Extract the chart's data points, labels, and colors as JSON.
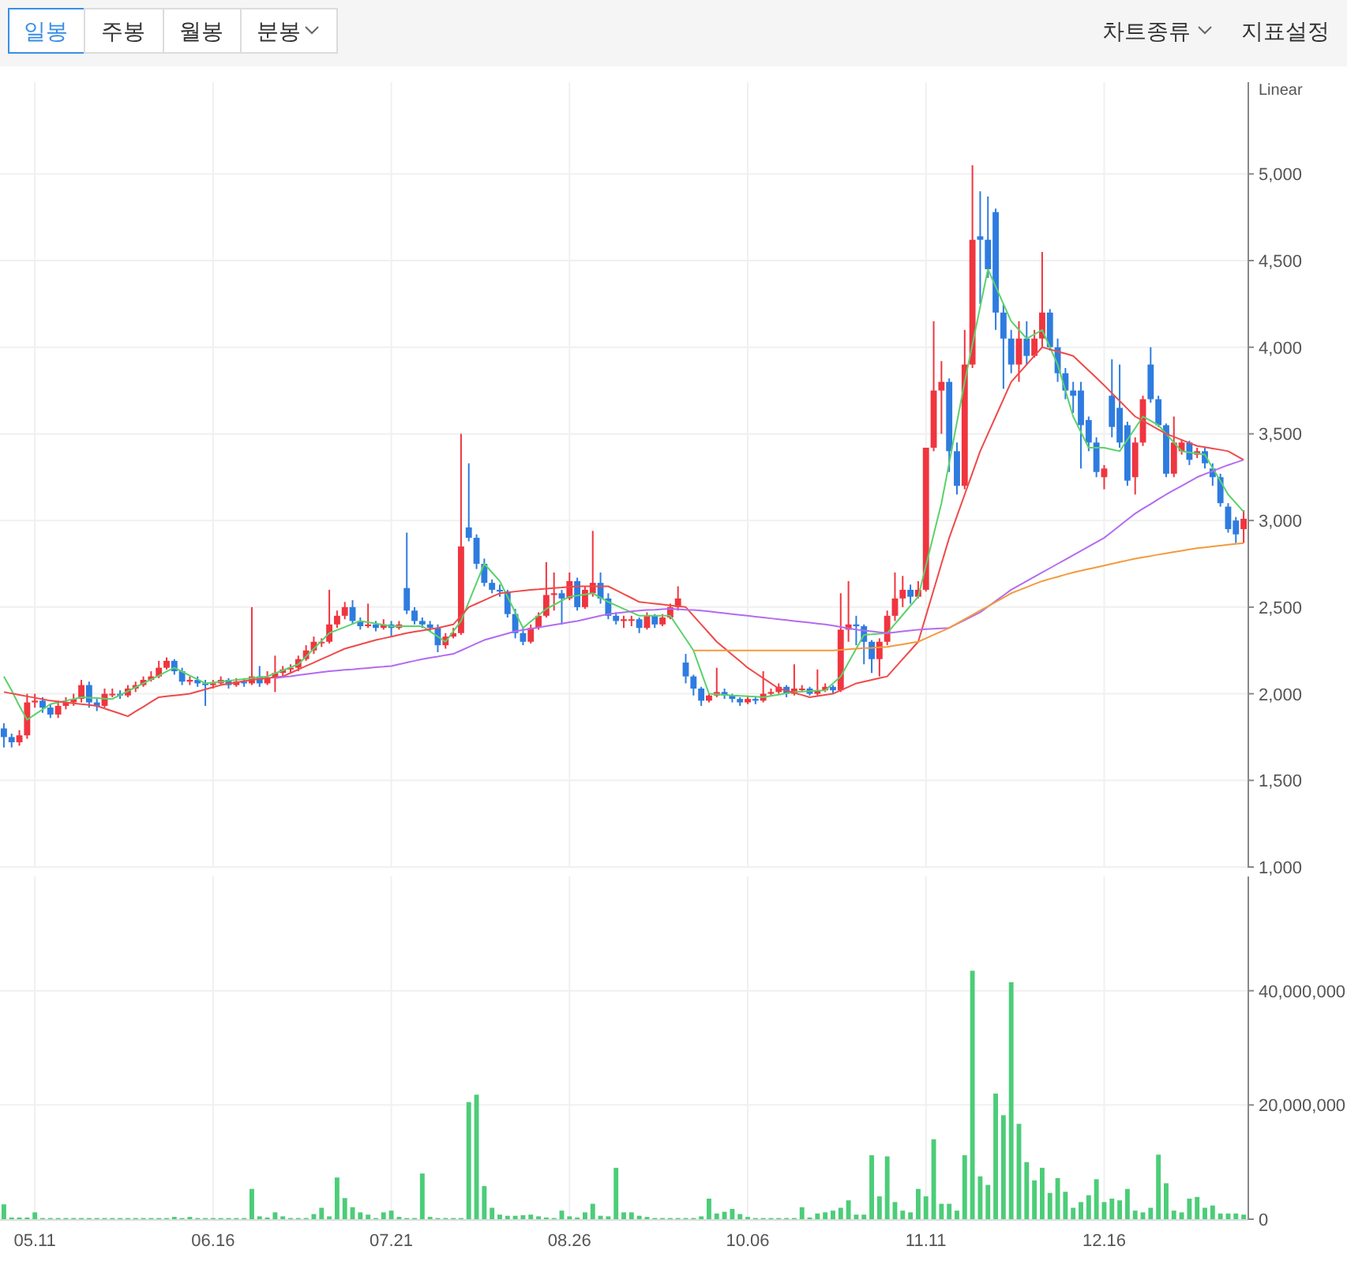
{
  "chart_data": [
    {
      "type": "candlestick",
      "annotations": [
        "일봉",
        "주봉",
        "월봉",
        "분봉",
        "차트종류",
        "지표설정",
        "Linear"
      ],
      "tick_labels": "y",
      "grid": true,
      "categories": [
        null,
        null,
        null,
        null,
        "05.11",
        null,
        null,
        null,
        null,
        null,
        null,
        null,
        null,
        null,
        null,
        null,
        null,
        null,
        null,
        null,
        null,
        null,
        null,
        null,
        null,
        null,
        null,
        "06.16",
        null,
        null,
        null,
        null,
        null,
        null,
        null,
        null,
        null,
        null,
        null,
        null,
        null,
        null,
        null,
        null,
        null,
        null,
        null,
        null,
        null,
        null,
        "07.21",
        null,
        null,
        null,
        null,
        null,
        null,
        null,
        null,
        null,
        null,
        null,
        null,
        null,
        null,
        null,
        null,
        null,
        null,
        null,
        null,
        null,
        null,
        "08.26",
        null,
        null,
        null,
        null,
        null,
        null,
        null,
        null,
        null,
        null,
        null,
        null,
        null,
        null,
        null,
        null,
        null,
        null,
        null,
        null,
        null,
        null,
        "10.06",
        null,
        null,
        null,
        null,
        null,
        null,
        null,
        null,
        null,
        null,
        null,
        null,
        null,
        null,
        null,
        null,
        null,
        null,
        null,
        null,
        null,
        null,
        "11.11",
        null,
        null,
        null,
        null,
        null,
        null,
        null,
        null,
        null,
        null,
        null,
        null,
        null,
        null,
        null,
        null,
        null,
        null,
        null,
        null,
        null,
        null,
        "12.16",
        null,
        null,
        null,
        null,
        null,
        null,
        null,
        null,
        null,
        null,
        null,
        null,
        null,
        null,
        null,
        null,
        null,
        null
      ],
      "ylim": [
        1000,
        5530
      ],
      "yticks": [
        {
          "value": 1000,
          "label": "1,000"
        },
        {
          "value": 1500,
          "label": "1,500"
        },
        {
          "value": 2000,
          "label": "2,000"
        },
        {
          "value": 2500,
          "label": "2,500"
        },
        {
          "value": 3000,
          "label": "3,000"
        },
        {
          "value": 3500,
          "label": "3,500"
        },
        {
          "value": 4000,
          "label": "4,000"
        },
        {
          "value": 4500,
          "label": "4,500"
        },
        {
          "value": 5000,
          "label": "5,000"
        }
      ],
      "colors": [
        "#2e7ce0",
        "#2e7ce0",
        "#f0353f",
        "#f0353f",
        "#f0353f",
        "#2e7ce0",
        "#2e7ce0",
        "#f0353f",
        "#f0353f",
        "#f0353f",
        "#f0353f",
        "#2e7ce0",
        "#2e7ce0",
        "#f0353f",
        "#f0353f",
        "#2e7ce0",
        "#f0353f",
        "#f0353f",
        "#f0353f",
        "#f0353f",
        "#f0353f",
        "#f0353f",
        "#2e7ce0",
        "#2e7ce0",
        "#f0353f",
        "#2e7ce0",
        "#2e7ce0",
        "#f0353f",
        "#f0353f",
        "#2e7ce0",
        "#f0353f",
        "#2e7ce0",
        "#f0353f",
        "#2e7ce0",
        "#f0353f",
        "#f0353f",
        "#f0353f",
        "#f0353f",
        "#f0353f",
        "#f0353f",
        "#f0353f",
        "#f0353f",
        "#f0353f",
        "#f0353f",
        "#f0353f",
        "#2e7ce0",
        "#2e7ce0",
        "#f0353f",
        "#2e7ce0",
        "#f0353f",
        "#2e7ce0",
        "#f0353f",
        "#2e7ce0",
        "#2e7ce0",
        "#2e7ce0",
        "#2e7ce0",
        "#2e7ce0",
        "#f0353f",
        "#f0353f",
        "#f0353f",
        "#2e7ce0",
        "#2e7ce0",
        "#2e7ce0",
        "#2e7ce0",
        "#2e7ce0",
        "#2e7ce0",
        "#2e7ce0",
        "#2e7ce0",
        "#f0353f",
        "#f0353f",
        "#f0353f",
        "#f0353f",
        "#2e7ce0",
        "#f0353f",
        "#2e7ce0",
        "#f0353f",
        "#f0353f",
        "#2e7ce0",
        "#2e7ce0",
        "#2e7ce0",
        "#f0353f",
        "#f0353f",
        "#2e7ce0",
        "#f0353f",
        "#2e7ce0",
        "#f0353f",
        "#f0353f",
        "#f0353f",
        "#2e7ce0",
        "#2e7ce0",
        "#2e7ce0",
        "#f0353f",
        "#f0353f",
        "#2e7ce0",
        "#2e7ce0",
        "#2e7ce0",
        "#f0353f",
        "#2e7ce0",
        "#f0353f",
        "#f0353f",
        "#f0353f",
        "#2e7ce0",
        "#f0353f",
        "#f0353f",
        "#2e7ce0",
        "#f0353f",
        "#f0353f",
        "#2e7ce0",
        "#f0353f",
        "#f0353f",
        "#2e7ce0",
        "#2e7ce0",
        "#2e7ce0",
        "#f0353f",
        "#f0353f",
        "#f0353f",
        "#f0353f",
        "#2e7ce0",
        "#f0353f",
        "#f0353f",
        "#f0353f",
        "#f0353f",
        "#2e7ce0",
        "#2e7ce0",
        "#f0353f",
        "#f0353f",
        "#2e7ce0",
        "#2e7ce0",
        "#2e7ce0",
        "#2e7ce0",
        "#2e7ce0",
        "#f0353f",
        "#2e7ce0",
        "#f0353f",
        "#f0353f",
        "#2e7ce0",
        "#2e7ce0",
        "#2e7ce0",
        "#2e7ce0",
        "#2e7ce0",
        "#2e7ce0",
        "#2e7ce0",
        "#f0353f",
        "#2e7ce0",
        "#2e7ce0",
        "#2e7ce0",
        "#f0353f",
        "#f0353f",
        "#2e7ce0",
        "#2e7ce0",
        "#2e7ce0",
        "#f0353f",
        "#f0353f",
        "#2e7ce0",
        "#f0353f",
        "#2e7ce0",
        "#2e7ce0",
        "#2e7ce0",
        "#2e7ce0",
        "#2e7ce0",
        "#f0353f"
      ],
      "ohlc": [
        [
          1800,
          1830,
          1690,
          1750
        ],
        [
          1750,
          1770,
          1690,
          1720
        ],
        [
          1720,
          1790,
          1700,
          1760
        ],
        [
          1760,
          2000,
          1740,
          1950
        ],
        [
          1950,
          2000,
          1920,
          1960
        ],
        [
          1960,
          1980,
          1890,
          1920
        ],
        [
          1920,
          1940,
          1860,
          1880
        ],
        [
          1880,
          1960,
          1860,
          1930
        ],
        [
          1930,
          1980,
          1910,
          1950
        ],
        [
          1950,
          2000,
          1930,
          1970
        ],
        [
          1970,
          2080,
          1950,
          2050
        ],
        [
          2050,
          2070,
          1920,
          1950
        ],
        [
          1950,
          1970,
          1900,
          1930
        ],
        [
          1930,
          2030,
          1920,
          2000
        ],
        [
          2000,
          2030,
          1980,
          2000
        ],
        [
          2000,
          2020,
          1970,
          1990
        ],
        [
          1990,
          2050,
          1980,
          2030
        ],
        [
          2030,
          2070,
          2010,
          2050
        ],
        [
          2050,
          2100,
          2040,
          2080
        ],
        [
          2080,
          2130,
          2070,
          2100
        ],
        [
          2100,
          2190,
          2090,
          2150
        ],
        [
          2150,
          2210,
          2140,
          2190
        ],
        [
          2190,
          2200,
          2110,
          2130
        ],
        [
          2130,
          2150,
          2050,
          2070
        ],
        [
          2070,
          2100,
          2050,
          2080
        ],
        [
          2080,
          2100,
          2040,
          2060
        ],
        [
          2060,
          2080,
          1930,
          2050
        ],
        [
          2050,
          2080,
          2030,
          2060
        ],
        [
          2060,
          2100,
          2050,
          2080
        ],
        [
          2080,
          2090,
          2030,
          2050
        ],
        [
          2050,
          2090,
          2040,
          2070
        ],
        [
          2070,
          2090,
          2040,
          2060
        ],
        [
          2060,
          2500,
          2050,
          2100
        ],
        [
          2100,
          2160,
          2040,
          2060
        ],
        [
          2060,
          2130,
          2050,
          2090
        ],
        [
          2090,
          2220,
          2010,
          2120
        ],
        [
          2120,
          2160,
          2100,
          2140
        ],
        [
          2140,
          2170,
          2120,
          2150
        ],
        [
          2150,
          2220,
          2130,
          2200
        ],
        [
          2200,
          2280,
          2190,
          2250
        ],
        [
          2250,
          2330,
          2230,
          2300
        ],
        [
          2300,
          2320,
          2270,
          2300
        ],
        [
          2300,
          2600,
          2290,
          2400
        ],
        [
          2400,
          2480,
          2380,
          2450
        ],
        [
          2450,
          2530,
          2430,
          2500
        ],
        [
          2500,
          2540,
          2400,
          2420
        ],
        [
          2420,
          2440,
          2370,
          2390
        ],
        [
          2390,
          2520,
          2380,
          2400
        ],
        [
          2400,
          2420,
          2360,
          2380
        ],
        [
          2380,
          2430,
          2370,
          2400
        ],
        [
          2400,
          2420,
          2330,
          2380
        ],
        [
          2380,
          2420,
          2370,
          2400
        ],
        [
          2610,
          2930,
          2460,
          2480
        ],
        [
          2480,
          2500,
          2400,
          2420
        ],
        [
          2420,
          2440,
          2380,
          2400
        ],
        [
          2400,
          2420,
          2360,
          2380
        ],
        [
          2380,
          2400,
          2240,
          2280
        ],
        [
          2280,
          2350,
          2260,
          2330
        ],
        [
          2330,
          2380,
          2320,
          2350
        ],
        [
          2350,
          3500,
          2340,
          2850
        ],
        [
          2960,
          3330,
          2880,
          2900
        ],
        [
          2900,
          2920,
          2720,
          2750
        ],
        [
          2750,
          2780,
          2620,
          2640
        ],
        [
          2640,
          2660,
          2580,
          2600
        ],
        [
          2600,
          2630,
          2560,
          2590
        ],
        [
          2590,
          2600,
          2440,
          2460
        ],
        [
          2460,
          2490,
          2320,
          2350
        ],
        [
          2350,
          2380,
          2280,
          2300
        ],
        [
          2300,
          2400,
          2290,
          2380
        ],
        [
          2380,
          2470,
          2370,
          2450
        ],
        [
          2450,
          2760,
          2440,
          2570
        ],
        [
          2570,
          2700,
          2480,
          2580
        ],
        [
          2580,
          2600,
          2400,
          2550
        ],
        [
          2550,
          2700,
          2540,
          2650
        ],
        [
          2650,
          2670,
          2480,
          2500
        ],
        [
          2500,
          2620,
          2490,
          2600
        ],
        [
          2580,
          2940,
          2560,
          2640
        ],
        [
          2640,
          2700,
          2520,
          2550
        ],
        [
          2550,
          2580,
          2430,
          2450
        ],
        [
          2450,
          2470,
          2400,
          2420
        ],
        [
          2420,
          2450,
          2380,
          2430
        ],
        [
          2430,
          2450,
          2390,
          2430
        ],
        [
          2430,
          2440,
          2350,
          2380
        ],
        [
          2380,
          2470,
          2370,
          2450
        ],
        [
          2450,
          2460,
          2380,
          2400
        ],
        [
          2400,
          2460,
          2390,
          2440
        ],
        [
          2440,
          2520,
          2430,
          2500
        ],
        [
          2500,
          2620,
          2480,
          2550
        ],
        [
          2180,
          2230,
          2060,
          2100
        ],
        [
          2100,
          2110,
          1990,
          2030
        ],
        [
          2030,
          2040,
          1930,
          1960
        ],
        [
          1960,
          2000,
          1950,
          1990
        ],
        [
          1990,
          2150,
          1980,
          2010
        ],
        [
          2010,
          2030,
          1970,
          1990
        ],
        [
          1990,
          2000,
          1950,
          1970
        ],
        [
          1970,
          1980,
          1930,
          1950
        ],
        [
          1950,
          1990,
          1940,
          1970
        ],
        [
          1970,
          1980,
          1940,
          1960
        ],
        [
          1960,
          2130,
          1950,
          2000
        ],
        [
          2000,
          2030,
          1990,
          2010
        ],
        [
          2010,
          2060,
          2000,
          2040
        ],
        [
          2040,
          2050,
          1980,
          2000
        ],
        [
          2000,
          2170,
          1990,
          2030
        ],
        [
          2030,
          2050,
          2010,
          2030
        ],
        [
          2030,
          2040,
          1990,
          2000
        ],
        [
          2000,
          2140,
          1990,
          2020
        ],
        [
          2020,
          2060,
          2010,
          2040
        ],
        [
          2040,
          2050,
          2000,
          2020
        ],
        [
          2020,
          2580,
          2010,
          2370
        ],
        [
          2370,
          2650,
          2300,
          2400
        ],
        [
          2400,
          2450,
          2280,
          2390
        ],
        [
          2390,
          2400,
          2170,
          2300
        ],
        [
          2300,
          2310,
          2120,
          2200
        ],
        [
          2200,
          2320,
          2100,
          2300
        ],
        [
          2300,
          2480,
          2280,
          2450
        ],
        [
          2450,
          2700,
          2420,
          2550
        ],
        [
          2550,
          2680,
          2500,
          2600
        ],
        [
          2600,
          2630,
          2520,
          2560
        ],
        [
          2560,
          2650,
          2550,
          2600
        ],
        [
          2600,
          3420,
          2590,
          3420
        ],
        [
          3420,
          4150,
          3400,
          3750
        ],
        [
          3750,
          3920,
          3500,
          3800
        ],
        [
          3800,
          3820,
          3280,
          3400
        ],
        [
          3400,
          3450,
          3150,
          3200
        ],
        [
          3200,
          4100,
          3180,
          3900
        ],
        [
          3900,
          5050,
          3880,
          4620
        ],
        [
          4640,
          4900,
          4250,
          4620
        ],
        [
          4620,
          4870,
          4400,
          4450
        ],
        [
          4780,
          4800,
          4100,
          4200
        ],
        [
          4200,
          4250,
          3760,
          4050
        ],
        [
          4050,
          4100,
          3850,
          3900
        ],
        [
          3900,
          4150,
          3800,
          4050
        ],
        [
          4050,
          4150,
          3900,
          3950
        ],
        [
          3950,
          4100,
          3940,
          4050
        ],
        [
          4050,
          4550,
          4000,
          4200
        ],
        [
          4200,
          4220,
          3980,
          4000
        ],
        [
          4000,
          4050,
          3800,
          3850
        ],
        [
          3850,
          3880,
          3700,
          3750
        ],
        [
          3750,
          3800,
          3620,
          3720
        ],
        [
          3750,
          3800,
          3300,
          3550
        ],
        [
          3580,
          3600,
          3400,
          3450
        ],
        [
          3450,
          3480,
          3250,
          3280
        ],
        [
          3250,
          3320,
          3180,
          3300
        ],
        [
          3720,
          3930,
          3480,
          3540
        ],
        [
          3650,
          3900,
          3420,
          3450
        ],
        [
          3550,
          3570,
          3200,
          3230
        ],
        [
          3250,
          3480,
          3150,
          3450
        ],
        [
          3450,
          3720,
          3430,
          3700
        ],
        [
          3900,
          4000,
          3680,
          3700
        ],
        [
          3700,
          3720,
          3540,
          3550
        ],
        [
          3550,
          3560,
          3250,
          3270
        ],
        [
          3270,
          3600,
          3250,
          3450
        ],
        [
          3400,
          3470,
          3380,
          3450
        ],
        [
          3450,
          3460,
          3320,
          3350
        ],
        [
          3380,
          3420,
          3360,
          3400
        ],
        [
          3400,
          3420,
          3300,
          3330
        ],
        [
          3300,
          3330,
          3200,
          3250
        ],
        [
          3250,
          3270,
          3080,
          3100
        ],
        [
          3080,
          3100,
          2930,
          2950
        ],
        [
          3000,
          3020,
          2870,
          2920
        ],
        [
          2950,
          3060,
          2870,
          3010
        ]
      ],
      "series": [
        {
          "type": "line",
          "color": "#5ad26a",
          "values": [
            2100,
            2020,
            1930,
            1850,
            1880,
            1910,
            1940,
            1950,
            1960,
            1970,
            1980,
            1978,
            1975,
            1972,
            1970,
            1993,
            2015,
            2038,
            2060,
            2083,
            2105,
            2128,
            2150,
            2128,
            2105,
            2083,
            2060,
            2065,
            2070,
            2075,
            2080,
            2085,
            2090,
            2095,
            2100,
            2118,
            2135,
            2153,
            2170,
            2215,
            2260,
            2305,
            2350,
            2368,
            2385,
            2403,
            2420,
            2413,
            2405,
            2398,
            2390,
            2390,
            2390,
            2390,
            2390,
            2360,
            2330,
            2300,
            2360,
            2420,
            2530,
            2640,
            2750,
            2700,
            2650,
            2560,
            2470,
            2380,
            2417,
            2453,
            2490,
            2513,
            2537,
            2560,
            2567,
            2573,
            2580,
            2555,
            2530,
            2510,
            2490,
            2470,
            2450,
            2450,
            2450,
            2450,
            2450,
            2383,
            2317,
            2250,
            2125,
            2000,
            1997,
            1993,
            1990,
            1988,
            1985,
            1983,
            1980,
            1988,
            1995,
            2003,
            2010,
            2013,
            2015,
            2018,
            2020,
            2060,
            2100,
            2180,
            2260,
            2340,
            2343,
            2347,
            2350,
            2403,
            2455,
            2508,
            2560,
            2740,
            2920,
            3100,
            3333,
            3567,
            3800,
            4017,
            4233,
            4450,
            4350,
            4250,
            4150,
            4100,
            4050,
            4075,
            4100,
            4000,
            3900,
            3750,
            3600,
            3510,
            3420,
            3420,
            3420,
            3410,
            3400,
            3467,
            3533,
            3600,
            3575,
            3550,
            3500,
            3450,
            3400,
            3393,
            3387,
            3380,
            3303,
            3227,
            3150,
            3100,
            3050
          ]
        },
        {
          "type": "line",
          "color": "#ef4a4a",
          "values": [
            2010,
            2002,
            1993,
            1985,
            1977,
            1968,
            1960,
            1955,
            1950,
            1945,
            1940,
            1935,
            1930,
            1915,
            1900,
            1885,
            1870,
            1898,
            1925,
            1953,
            1980,
            1985,
            1990,
            1995,
            2000,
            2013,
            2025,
            2038,
            2050,
            2058,
            2065,
            2073,
            2080,
            2085,
            2090,
            2095,
            2100,
            2120,
            2140,
            2160,
            2180,
            2200,
            2220,
            2240,
            2260,
            2273,
            2285,
            2298,
            2310,
            2320,
            2330,
            2340,
            2350,
            2358,
            2365,
            2373,
            2380,
            2390,
            2400,
            2450,
            2500,
            2520,
            2540,
            2560,
            2580,
            2585,
            2590,
            2595,
            2600,
            2603,
            2607,
            2610,
            2613,
            2617,
            2620,
            2620,
            2620,
            2620,
            2620,
            2598,
            2575,
            2553,
            2530,
            2525,
            2520,
            2515,
            2510,
            2505,
            2500,
            2450,
            2400,
            2350,
            2300,
            2263,
            2225,
            2188,
            2150,
            2120,
            2090,
            2060,
            2030,
            2018,
            2005,
            1993,
            1980,
            1987,
            1993,
            2000,
            2020,
            2040,
            2060,
            2070,
            2080,
            2090,
            2100,
            2150,
            2200,
            2250,
            2300,
            2450,
            2600,
            2750,
            2900,
            3025,
            3150,
            3275,
            3400,
            3500,
            3600,
            3700,
            3800,
            3850,
            3900,
            3950,
            4000,
            3988,
            3975,
            3963,
            3950,
            3908,
            3865,
            3823,
            3780,
            3735,
            3690,
            3645,
            3600,
            3575,
            3550,
            3525,
            3500,
            3483,
            3465,
            3448,
            3430,
            3423,
            3415,
            3408,
            3400,
            3375,
            3350
          ]
        },
        {
          "type": "line",
          "color": "#b36bf0",
          "values": [
            null,
            null,
            null,
            null,
            null,
            null,
            null,
            null,
            null,
            null,
            null,
            null,
            null,
            null,
            null,
            null,
            null,
            null,
            null,
            null,
            null,
            null,
            null,
            null,
            null,
            null,
            null,
            null,
            null,
            null,
            null,
            null,
            null,
            null,
            null,
            2090,
            2096,
            2101,
            2107,
            2113,
            2119,
            2124,
            2130,
            2134,
            2138,
            2141,
            2145,
            2149,
            2153,
            2156,
            2160,
            2170,
            2180,
            2190,
            2200,
            2208,
            2215,
            2223,
            2230,
            2250,
            2270,
            2290,
            2310,
            2323,
            2335,
            2348,
            2360,
            2368,
            2375,
            2383,
            2390,
            2398,
            2405,
            2413,
            2420,
            2430,
            2440,
            2450,
            2460,
            2465,
            2470,
            2475,
            2480,
            2483,
            2485,
            2488,
            2490,
            2488,
            2485,
            2483,
            2480,
            2475,
            2470,
            2465,
            2460,
            2455,
            2450,
            2445,
            2440,
            2435,
            2430,
            2425,
            2420,
            2415,
            2410,
            2405,
            2400,
            2393,
            2385,
            2378,
            2370,
            2365,
            2360,
            2355,
            2350,
            2355,
            2360,
            2365,
            2370,
            2373,
            2375,
            2378,
            2380,
            2403,
            2425,
            2448,
            2470,
            2503,
            2535,
            2568,
            2600,
            2625,
            2650,
            2675,
            2700,
            2725,
            2750,
            2775,
            2800,
            2825,
            2850,
            2875,
            2900,
            2935,
            2970,
            3005,
            3040,
            3068,
            3095,
            3123,
            3150,
            3175,
            3200,
            3225,
            3250,
            3268,
            3285,
            3303,
            3320,
            3335,
            3350
          ]
        },
        {
          "type": "line",
          "color": "#f39a3c",
          "values": [
            null,
            null,
            null,
            null,
            null,
            null,
            null,
            null,
            null,
            null,
            null,
            null,
            null,
            null,
            null,
            null,
            null,
            null,
            null,
            null,
            null,
            null,
            null,
            null,
            null,
            null,
            null,
            null,
            null,
            null,
            null,
            null,
            null,
            null,
            null,
            null,
            null,
            null,
            null,
            null,
            null,
            null,
            null,
            null,
            null,
            null,
            null,
            null,
            null,
            null,
            null,
            null,
            null,
            null,
            null,
            null,
            null,
            null,
            null,
            null,
            null,
            null,
            null,
            null,
            null,
            null,
            null,
            null,
            null,
            null,
            null,
            null,
            null,
            null,
            null,
            null,
            null,
            null,
            null,
            null,
            null,
            null,
            null,
            null,
            null,
            null,
            null,
            null,
            null,
            2250,
            2250,
            2250,
            2250,
            2250,
            2250,
            2250,
            2250,
            2250,
            2250,
            2250,
            2250,
            2250,
            2250,
            2250,
            2250,
            2250,
            2250,
            2250,
            2253,
            2257,
            2260,
            2263,
            2265,
            2268,
            2270,
            2278,
            2285,
            2293,
            2300,
            2320,
            2340,
            2360,
            2380,
            2405,
            2430,
            2455,
            2480,
            2505,
            2530,
            2555,
            2580,
            2598,
            2615,
            2633,
            2650,
            2663,
            2675,
            2688,
            2700,
            2710,
            2720,
            2730,
            2740,
            2750,
            2760,
            2770,
            2780,
            2788,
            2795,
            2803,
            2810,
            2818,
            2825,
            2833,
            2840,
            2845,
            2850,
            2855,
            2860,
            2865,
            2870
          ]
        }
      ]
    },
    {
      "type": "bar",
      "grid": true,
      "color": "#4ccd78",
      "categories": [
        null,
        null,
        null,
        null,
        "05.11",
        null,
        null,
        null,
        null,
        null,
        null,
        null,
        null,
        null,
        null,
        null,
        null,
        null,
        null,
        null,
        null,
        null,
        null,
        null,
        null,
        null,
        null,
        "06.16",
        null,
        null,
        null,
        null,
        null,
        null,
        null,
        null,
        null,
        null,
        null,
        null,
        null,
        null,
        null,
        null,
        null,
        null,
        null,
        null,
        null,
        null,
        "07.21",
        null,
        null,
        null,
        null,
        null,
        null,
        null,
        null,
        null,
        null,
        null,
        null,
        null,
        null,
        null,
        null,
        null,
        null,
        null,
        null,
        null,
        null,
        "08.26",
        null,
        null,
        null,
        null,
        null,
        null,
        null,
        null,
        null,
        null,
        null,
        null,
        null,
        null,
        null,
        null,
        null,
        null,
        null,
        null,
        null,
        null,
        "10.06",
        null,
        null,
        null,
        null,
        null,
        null,
        null,
        null,
        null,
        null,
        null,
        null,
        null,
        null,
        null,
        null,
        null,
        null,
        null,
        null,
        null,
        null,
        "11.11",
        null,
        null,
        null,
        null,
        null,
        null,
        null,
        null,
        null,
        null,
        null,
        null,
        null,
        null,
        null,
        null,
        null,
        null,
        null,
        null,
        null,
        null,
        "12.16",
        null,
        null,
        null,
        null,
        null,
        null,
        null,
        null,
        null,
        null,
        null,
        null,
        null,
        null,
        null,
        null,
        null,
        null
      ],
      "ylim": [
        0,
        60000000
      ],
      "yticks": [
        {
          "value": 0,
          "label": "0"
        },
        {
          "value": 20000000,
          "label": "20,000,000"
        },
        {
          "value": 40000000,
          "label": "40,000,000"
        }
      ],
      "values": [
        2600000,
        300000,
        300000,
        300000,
        1200000,
        200000,
        200000,
        200000,
        200000,
        200000,
        200000,
        200000,
        200000,
        200000,
        200000,
        200000,
        200000,
        200000,
        200000,
        200000,
        200000,
        200000,
        400000,
        200000,
        400000,
        200000,
        200000,
        200000,
        200000,
        200000,
        200000,
        200000,
        5300000,
        500000,
        300000,
        1200000,
        500000,
        200000,
        200000,
        200000,
        900000,
        2000000,
        500000,
        7300000,
        3700000,
        2100000,
        1200000,
        800000,
        200000,
        1200000,
        1500000,
        400000,
        200000,
        200000,
        8000000,
        400000,
        200000,
        200000,
        200000,
        200000,
        20500000,
        21800000,
        5800000,
        2000000,
        800000,
        600000,
        600000,
        700000,
        800000,
        500000,
        300000,
        200000,
        1500000,
        500000,
        300000,
        1200000,
        2700000,
        600000,
        500000,
        9000000,
        1200000,
        1200000,
        600000,
        400000,
        200000,
        200000,
        200000,
        200000,
        200000,
        200000,
        500000,
        3600000,
        1000000,
        1300000,
        1800000,
        900000,
        400000,
        200000,
        200000,
        200000,
        200000,
        200000,
        200000,
        2100000,
        300000,
        1000000,
        1200000,
        1500000,
        2000000,
        3300000,
        800000,
        800000,
        11200000,
        4000000,
        11000000,
        3000000,
        1500000,
        1200000,
        5300000,
        4000000,
        14000000,
        2700000,
        2700000,
        1500000,
        11200000,
        43500000,
        7500000,
        6000000,
        22000000,
        18200000,
        41500000,
        16700000,
        10000000,
        6800000,
        9000000,
        4600000,
        7200000,
        4800000,
        2000000,
        3000000,
        4200000,
        7000000,
        3000000,
        3600000,
        3300000,
        5300000,
        1500000,
        1200000,
        2000000,
        11300000,
        6300000,
        1500000,
        1200000,
        3600000,
        3900000,
        2000000,
        2400000,
        1000000,
        1000000,
        1000000,
        800000
      ]
    }
  ]
}
